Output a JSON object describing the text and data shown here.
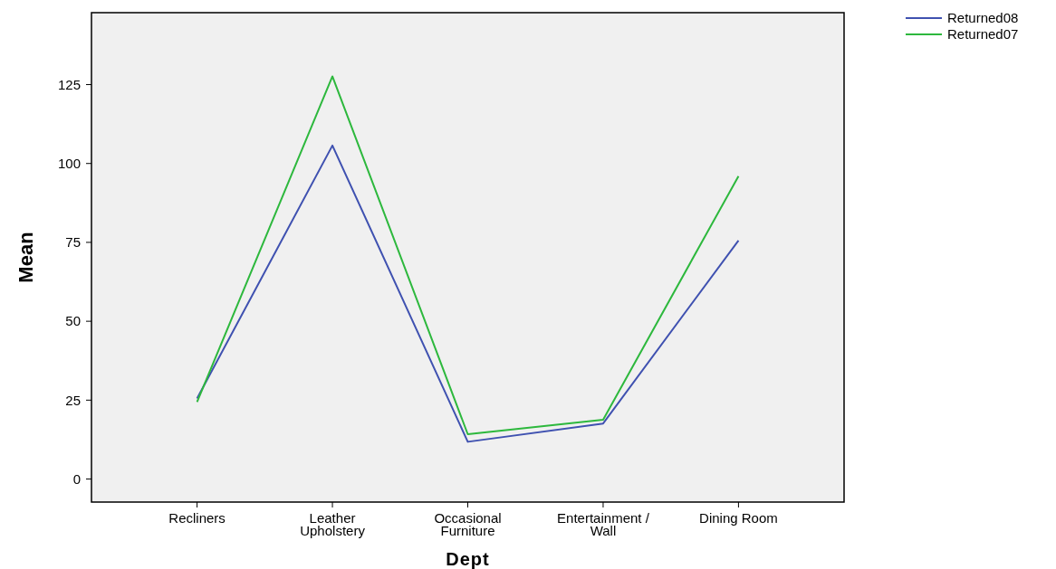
{
  "chart_data": {
    "type": "line",
    "xlabel": "Dept",
    "ylabel": "Mean",
    "categories": [
      "Recliners",
      "Leather Upholstery",
      "Occasional Furniture",
      "Entertainment / Wall",
      "Dining Room"
    ],
    "series": [
      {
        "name": "Returned08",
        "color": "#3f51b0",
        "values": [
          25.5,
          105.7,
          11.8,
          17.6,
          75.6
        ]
      },
      {
        "name": "Returned07",
        "color": "#2db83d",
        "values": [
          24.4,
          127.6,
          14.2,
          18.8,
          96.0
        ]
      }
    ],
    "ylim": [
      -7.3,
      147.8
    ],
    "yticks": [
      0,
      25,
      50,
      75,
      100,
      125
    ],
    "grid": false,
    "legend": "top right",
    "marker": "none",
    "line_style": "solid"
  }
}
